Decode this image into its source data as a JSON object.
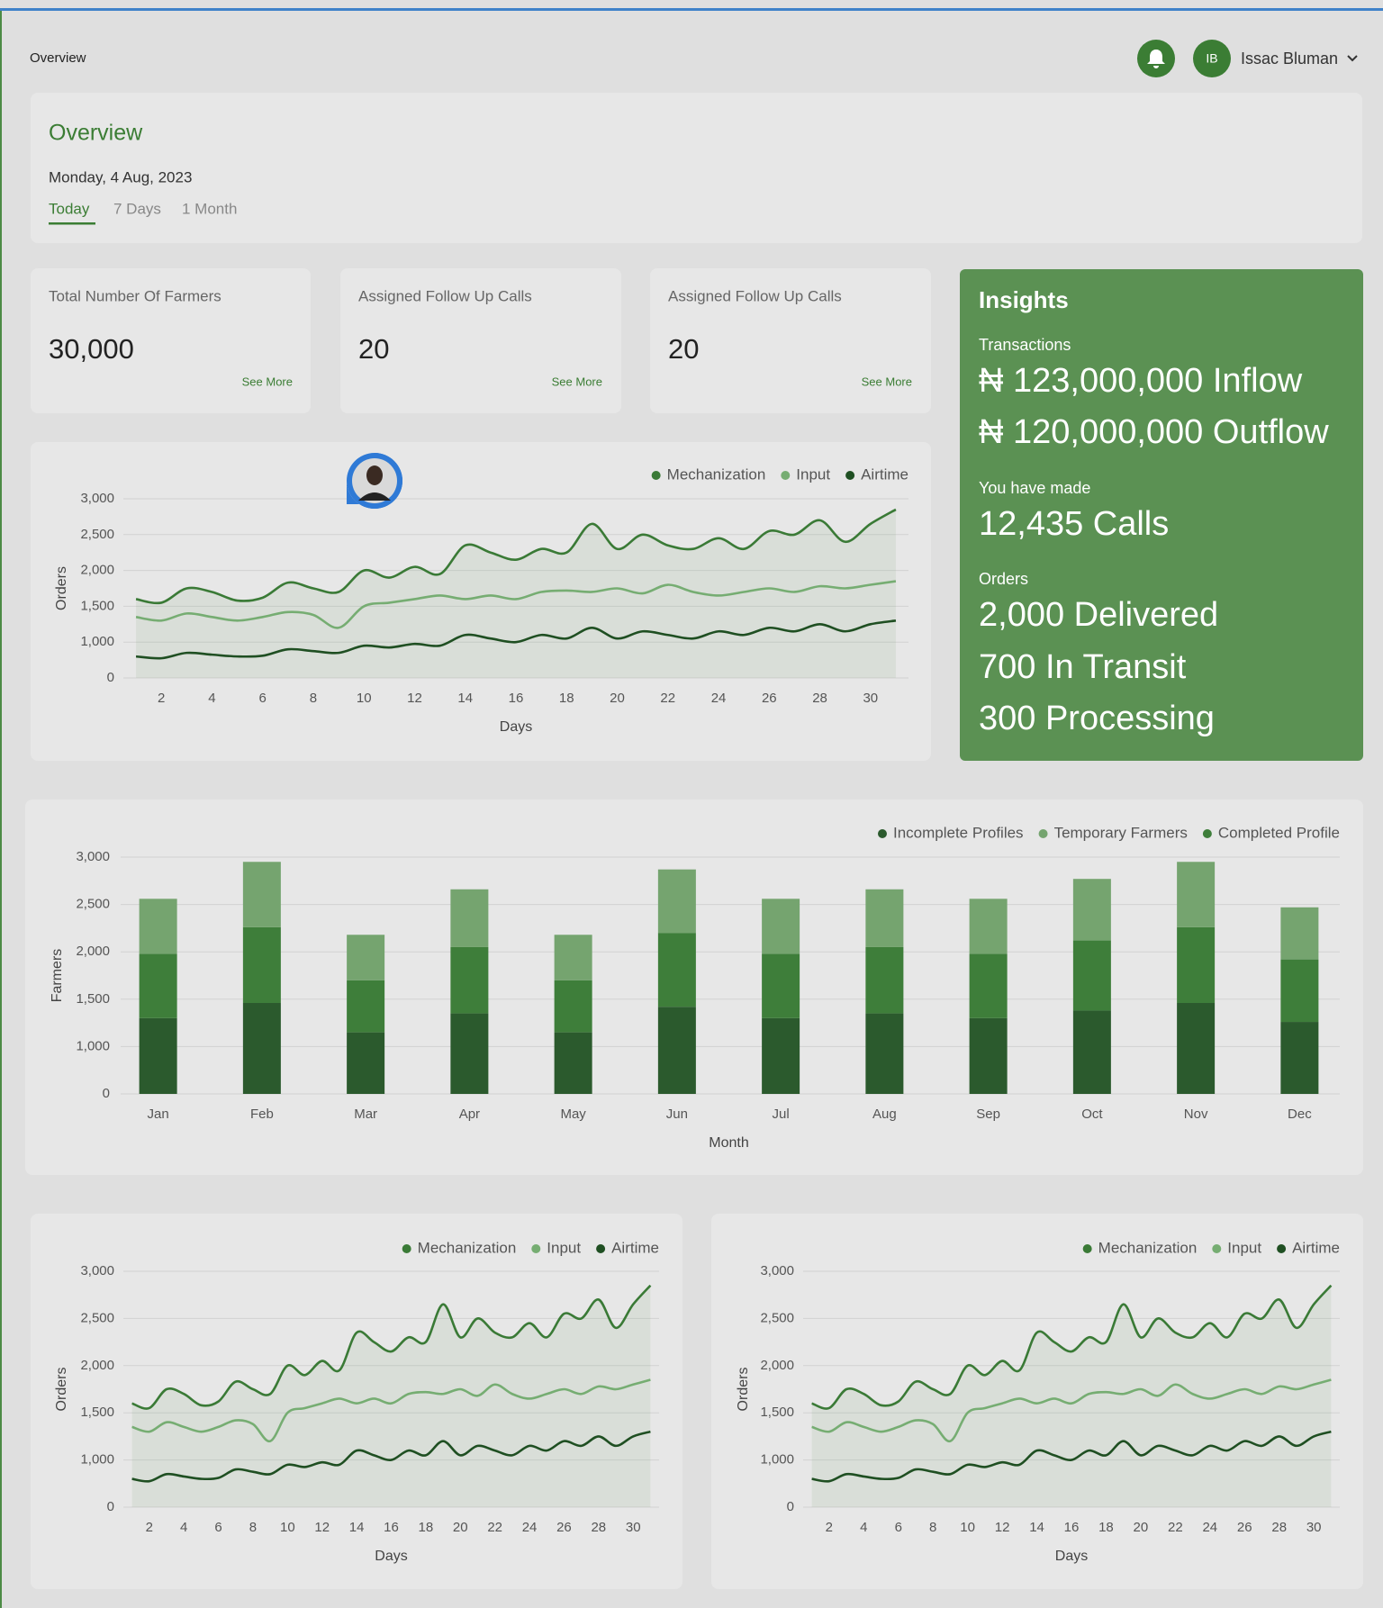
{
  "header": {
    "title": "Overview",
    "user_initials": "IB",
    "user_name": "Issac Bluman"
  },
  "overview": {
    "title": "Overview",
    "date": "Monday, 4 Aug, 2023",
    "tabs": [
      "Today",
      "7 Days",
      "1 Month"
    ]
  },
  "stats": [
    {
      "title": "Total Number Of Farmers",
      "value": "30,000",
      "link": "See More"
    },
    {
      "title": "Assigned Follow Up Calls",
      "value": "20",
      "link": "See More"
    },
    {
      "title": "Assigned Follow Up Calls",
      "value": "20",
      "link": "See More"
    }
  ],
  "insights": {
    "title": "Insights",
    "sections": [
      {
        "label": "Transactions",
        "lines": [
          "₦ 123,000,000 Inflow",
          "₦ 120,000,000 Outflow"
        ]
      },
      {
        "label": "You have made",
        "lines": [
          "12,435 Calls"
        ]
      },
      {
        "label": "Orders",
        "lines": [
          "2,000 Delivered",
          "700 In Transit",
          "300 Processing"
        ]
      }
    ]
  },
  "chart_data": [
    {
      "type": "line",
      "x": [
        1,
        2,
        3,
        4,
        5,
        6,
        7,
        8,
        9,
        10,
        11,
        12,
        13,
        14,
        15,
        16,
        17,
        18,
        19,
        20,
        21,
        22,
        23,
        24,
        25,
        26,
        27,
        28,
        29,
        30,
        31
      ],
      "series": [
        {
          "name": "Mechanization",
          "color": "#3a7a36",
          "values": [
            1600,
            1550,
            1750,
            1700,
            1580,
            1620,
            1830,
            1750,
            1700,
            2000,
            1900,
            2050,
            1950,
            2350,
            2250,
            2150,
            2300,
            2250,
            2650,
            2300,
            2500,
            2350,
            2300,
            2450,
            2300,
            2550,
            2500,
            2700,
            2400,
            2650,
            2850
          ]
        },
        {
          "name": "Input",
          "color": "#76ad72",
          "values": [
            1350,
            1300,
            1400,
            1350,
            1300,
            1350,
            1420,
            1380,
            1200,
            1500,
            1550,
            1600,
            1650,
            1600,
            1650,
            1600,
            1700,
            1720,
            1700,
            1750,
            1680,
            1800,
            1700,
            1650,
            1700,
            1750,
            1700,
            1780,
            1750,
            1800,
            1850
          ]
        },
        {
          "name": "Airtime",
          "color": "#1f4f22",
          "values": [
            600,
            550,
            700,
            650,
            600,
            620,
            800,
            750,
            700,
            900,
            850,
            950,
            900,
            1100,
            1050,
            1000,
            1100,
            1050,
            1200,
            1050,
            1150,
            1100,
            1050,
            1150,
            1100,
            1200,
            1150,
            1250,
            1150,
            1250,
            1300
          ]
        }
      ],
      "xlim": [
        0.5,
        31.5
      ],
      "ylim": [
        0,
        3000
      ],
      "xticks": [
        2,
        4,
        6,
        8,
        10,
        12,
        14,
        16,
        18,
        20,
        22,
        24,
        26,
        28,
        30
      ],
      "yticks": [
        0,
        {
          "value": 1000,
          "label": "1,000"
        },
        {
          "value": 1500,
          "label": "1,500"
        },
        {
          "value": 2000,
          "label": "2,000"
        },
        {
          "value": 2500,
          "label": "2,500"
        },
        {
          "value": 3000,
          "label": "3,000"
        }
      ],
      "xlabel": "Days",
      "ylabel": "Orders",
      "legend": "upper right",
      "grid": true
    },
    {
      "type": "bar",
      "categories": [
        "Jan",
        "Feb",
        "Mar",
        "Apr",
        "May",
        "Jun",
        "Jul",
        "Aug",
        "Sep",
        "Oct",
        "Nov",
        "Dec"
      ],
      "series": [
        {
          "name": "Incomplete Profiles",
          "color": "#2b5a2d",
          "values": [
            1300,
            1460,
            1150,
            1350,
            1150,
            1420,
            1300,
            1350,
            1300,
            1380,
            1460,
            1260
          ]
        },
        {
          "name": "Temporary Farmers",
          "color": "#75a46f",
          "values": [
            580,
            690,
            480,
            610,
            480,
            670,
            580,
            610,
            580,
            650,
            690,
            550
          ]
        },
        {
          "name": "Completed Profile",
          "color": "#3e7e3a",
          "values": [
            680,
            800,
            550,
            700,
            550,
            780,
            680,
            700,
            680,
            740,
            800,
            660
          ]
        }
      ],
      "ylim": [
        0,
        3000
      ],
      "yticks": [
        0,
        {
          "value": 1000,
          "label": "1,000"
        },
        {
          "value": 1500,
          "label": "1,500"
        },
        {
          "value": 2000,
          "label": "2,000"
        },
        {
          "value": 2500,
          "label": "2,500"
        },
        {
          "value": 3000,
          "label": "3,000"
        }
      ],
      "xlabel": "Month",
      "ylabel": "Farmers",
      "legend": "upper right",
      "grid": true,
      "stacked": true
    },
    {
      "type": "line",
      "x": [
        1,
        2,
        3,
        4,
        5,
        6,
        7,
        8,
        9,
        10,
        11,
        12,
        13,
        14,
        15,
        16,
        17,
        18,
        19,
        20,
        21,
        22,
        23,
        24,
        25,
        26,
        27,
        28,
        29,
        30,
        31
      ],
      "series": [
        {
          "name": "Mechanization",
          "color": "#3a7a36",
          "values": [
            1600,
            1550,
            1750,
            1700,
            1580,
            1620,
            1830,
            1750,
            1700,
            2000,
            1900,
            2050,
            1950,
            2350,
            2250,
            2150,
            2300,
            2250,
            2650,
            2300,
            2500,
            2350,
            2300,
            2450,
            2300,
            2550,
            2500,
            2700,
            2400,
            2650,
            2850
          ]
        },
        {
          "name": "Input",
          "color": "#76ad72",
          "values": [
            1350,
            1300,
            1400,
            1350,
            1300,
            1350,
            1420,
            1380,
            1200,
            1500,
            1550,
            1600,
            1650,
            1600,
            1650,
            1600,
            1700,
            1720,
            1700,
            1750,
            1680,
            1800,
            1700,
            1650,
            1700,
            1750,
            1700,
            1780,
            1750,
            1800,
            1850
          ]
        },
        {
          "name": "Airtime",
          "color": "#1f4f22",
          "values": [
            600,
            550,
            700,
            650,
            600,
            620,
            800,
            750,
            700,
            900,
            850,
            950,
            900,
            1100,
            1050,
            1000,
            1100,
            1050,
            1200,
            1050,
            1150,
            1100,
            1050,
            1150,
            1100,
            1200,
            1150,
            1250,
            1150,
            1250,
            1300
          ]
        }
      ],
      "xlim": [
        0.5,
        31.5
      ],
      "ylim": [
        0,
        3000
      ],
      "xticks": [
        2,
        4,
        6,
        8,
        10,
        12,
        14,
        16,
        18,
        20,
        22,
        24,
        26,
        28,
        30
      ],
      "yticks": [
        0,
        {
          "value": 1000,
          "label": "1,000"
        },
        {
          "value": 1500,
          "label": "1,500"
        },
        {
          "value": 2000,
          "label": "2,000"
        },
        {
          "value": 2500,
          "label": "2,500"
        },
        {
          "value": 3000,
          "label": "3,000"
        }
      ],
      "xlabel": "Days",
      "ylabel": "Orders",
      "legend": "upper right",
      "grid": true
    },
    {
      "type": "line",
      "x": [
        1,
        2,
        3,
        4,
        5,
        6,
        7,
        8,
        9,
        10,
        11,
        12,
        13,
        14,
        15,
        16,
        17,
        18,
        19,
        20,
        21,
        22,
        23,
        24,
        25,
        26,
        27,
        28,
        29,
        30,
        31
      ],
      "series": [
        {
          "name": "Mechanization",
          "color": "#3a7a36",
          "values": [
            1600,
            1550,
            1750,
            1700,
            1580,
            1620,
            1830,
            1750,
            1700,
            2000,
            1900,
            2050,
            1950,
            2350,
            2250,
            2150,
            2300,
            2250,
            2650,
            2300,
            2500,
            2350,
            2300,
            2450,
            2300,
            2550,
            2500,
            2700,
            2400,
            2650,
            2850
          ]
        },
        {
          "name": "Input",
          "color": "#76ad72",
          "values": [
            1350,
            1300,
            1400,
            1350,
            1300,
            1350,
            1420,
            1380,
            1200,
            1500,
            1550,
            1600,
            1650,
            1600,
            1650,
            1600,
            1700,
            1720,
            1700,
            1750,
            1680,
            1800,
            1700,
            1650,
            1700,
            1750,
            1700,
            1780,
            1750,
            1800,
            1850
          ]
        },
        {
          "name": "Airtime",
          "color": "#1f4f22",
          "values": [
            600,
            550,
            700,
            650,
            600,
            620,
            800,
            750,
            700,
            900,
            850,
            950,
            900,
            1100,
            1050,
            1000,
            1100,
            1050,
            1200,
            1050,
            1150,
            1100,
            1050,
            1150,
            1100,
            1200,
            1150,
            1250,
            1150,
            1250,
            1300
          ]
        }
      ],
      "xlim": [
        0.5,
        31.5
      ],
      "ylim": [
        0,
        3000
      ],
      "xticks": [
        2,
        4,
        6,
        8,
        10,
        12,
        14,
        16,
        18,
        20,
        22,
        24,
        26,
        28,
        30
      ],
      "yticks": [
        0,
        {
          "value": 1000,
          "label": "1,000"
        },
        {
          "value": 1500,
          "label": "1,500"
        },
        {
          "value": 2000,
          "label": "2,000"
        },
        {
          "value": 2500,
          "label": "2,500"
        },
        {
          "value": 3000,
          "label": "3,000"
        }
      ],
      "xlabel": "Days",
      "ylabel": "Orders",
      "legend": "upper right",
      "grid": true
    }
  ]
}
